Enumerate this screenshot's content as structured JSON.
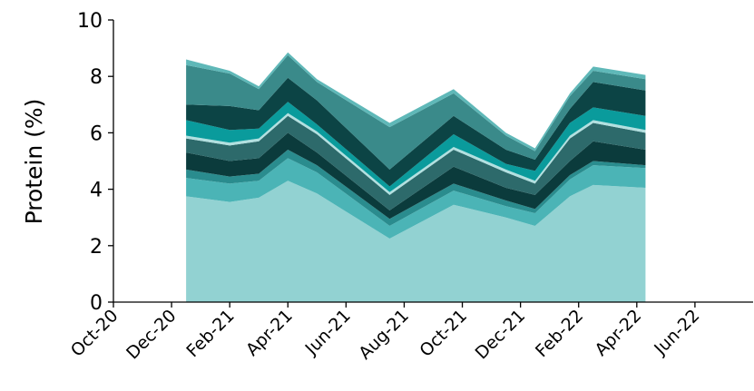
{
  "chart_data": {
    "type": "stacked_area",
    "ylabel": "Protein (%)",
    "x": [
      2.5,
      4,
      5,
      6,
      7,
      9.5,
      11.7,
      13.5,
      14.5,
      15.7,
      16.5,
      18.3
    ],
    "xlim": [
      0,
      22
    ],
    "xticks": [
      {
        "value": 0,
        "label": "Oct-20"
      },
      {
        "value": 2,
        "label": "Dec-20"
      },
      {
        "value": 4,
        "label": "Feb-21"
      },
      {
        "value": 6,
        "label": "Apr-21"
      },
      {
        "value": 8,
        "label": "Jun-21"
      },
      {
        "value": 10,
        "label": "Aug-21"
      },
      {
        "value": 12,
        "label": "Oct-21"
      },
      {
        "value": 14,
        "label": "Dec-21"
      },
      {
        "value": 16,
        "label": "Feb-22"
      },
      {
        "value": 18,
        "label": "Apr-22"
      },
      {
        "value": 20,
        "label": "Jun-22"
      }
    ],
    "ylim": [
      0,
      10
    ],
    "yticks": [
      0,
      2,
      4,
      6,
      8,
      10
    ],
    "series": [
      {
        "color": "#92d2d2",
        "values": [
          3.75,
          3.55,
          3.7,
          4.3,
          3.85,
          2.25,
          3.45,
          3.0,
          2.7,
          3.75,
          4.15,
          4.05
        ]
      },
      {
        "color": "#4bb4b6",
        "values": [
          0.65,
          0.65,
          0.6,
          0.8,
          0.75,
          0.45,
          0.5,
          0.4,
          0.45,
          0.6,
          0.7,
          0.7
        ]
      },
      {
        "color": "#2a8c8e",
        "values": [
          0.3,
          0.25,
          0.25,
          0.3,
          0.25,
          0.25,
          0.25,
          0.2,
          0.15,
          0.15,
          0.15,
          0.1
        ]
      },
      {
        "color": "#0b3b3c",
        "values": [
          0.6,
          0.55,
          0.55,
          0.6,
          0.45,
          0.3,
          0.6,
          0.45,
          0.5,
          0.5,
          0.7,
          0.55
        ]
      },
      {
        "color": "#2d6a6b",
        "values": [
          0.5,
          0.55,
          0.6,
          0.6,
          0.65,
          0.55,
          0.6,
          0.55,
          0.4,
          0.8,
          0.65,
          0.6
        ]
      },
      {
        "color": "#b2e0e0",
        "values": [
          0.1,
          0.1,
          0.1,
          0.1,
          0.1,
          0.1,
          0.1,
          0.1,
          0.1,
          0.1,
          0.1,
          0.1
        ]
      },
      {
        "color": "#0a9b9c",
        "values": [
          0.55,
          0.45,
          0.35,
          0.4,
          0.25,
          0.2,
          0.45,
          0.2,
          0.35,
          0.45,
          0.45,
          0.5
        ]
      },
      {
        "color": "#0c4445",
        "values": [
          0.55,
          0.85,
          0.65,
          0.85,
          0.85,
          0.6,
          0.65,
          0.5,
          0.4,
          0.5,
          0.9,
          0.9
        ]
      },
      {
        "color": "#3a8a8a",
        "values": [
          1.4,
          1.15,
          0.75,
          0.8,
          0.65,
          1.5,
          0.8,
          0.5,
          0.3,
          0.45,
          0.4,
          0.4
        ]
      },
      {
        "color": "#5fb8b8",
        "values": [
          0.2,
          0.1,
          0.1,
          0.1,
          0.1,
          0.15,
          0.15,
          0.1,
          0.1,
          0.1,
          0.15,
          0.15
        ]
      }
    ]
  }
}
